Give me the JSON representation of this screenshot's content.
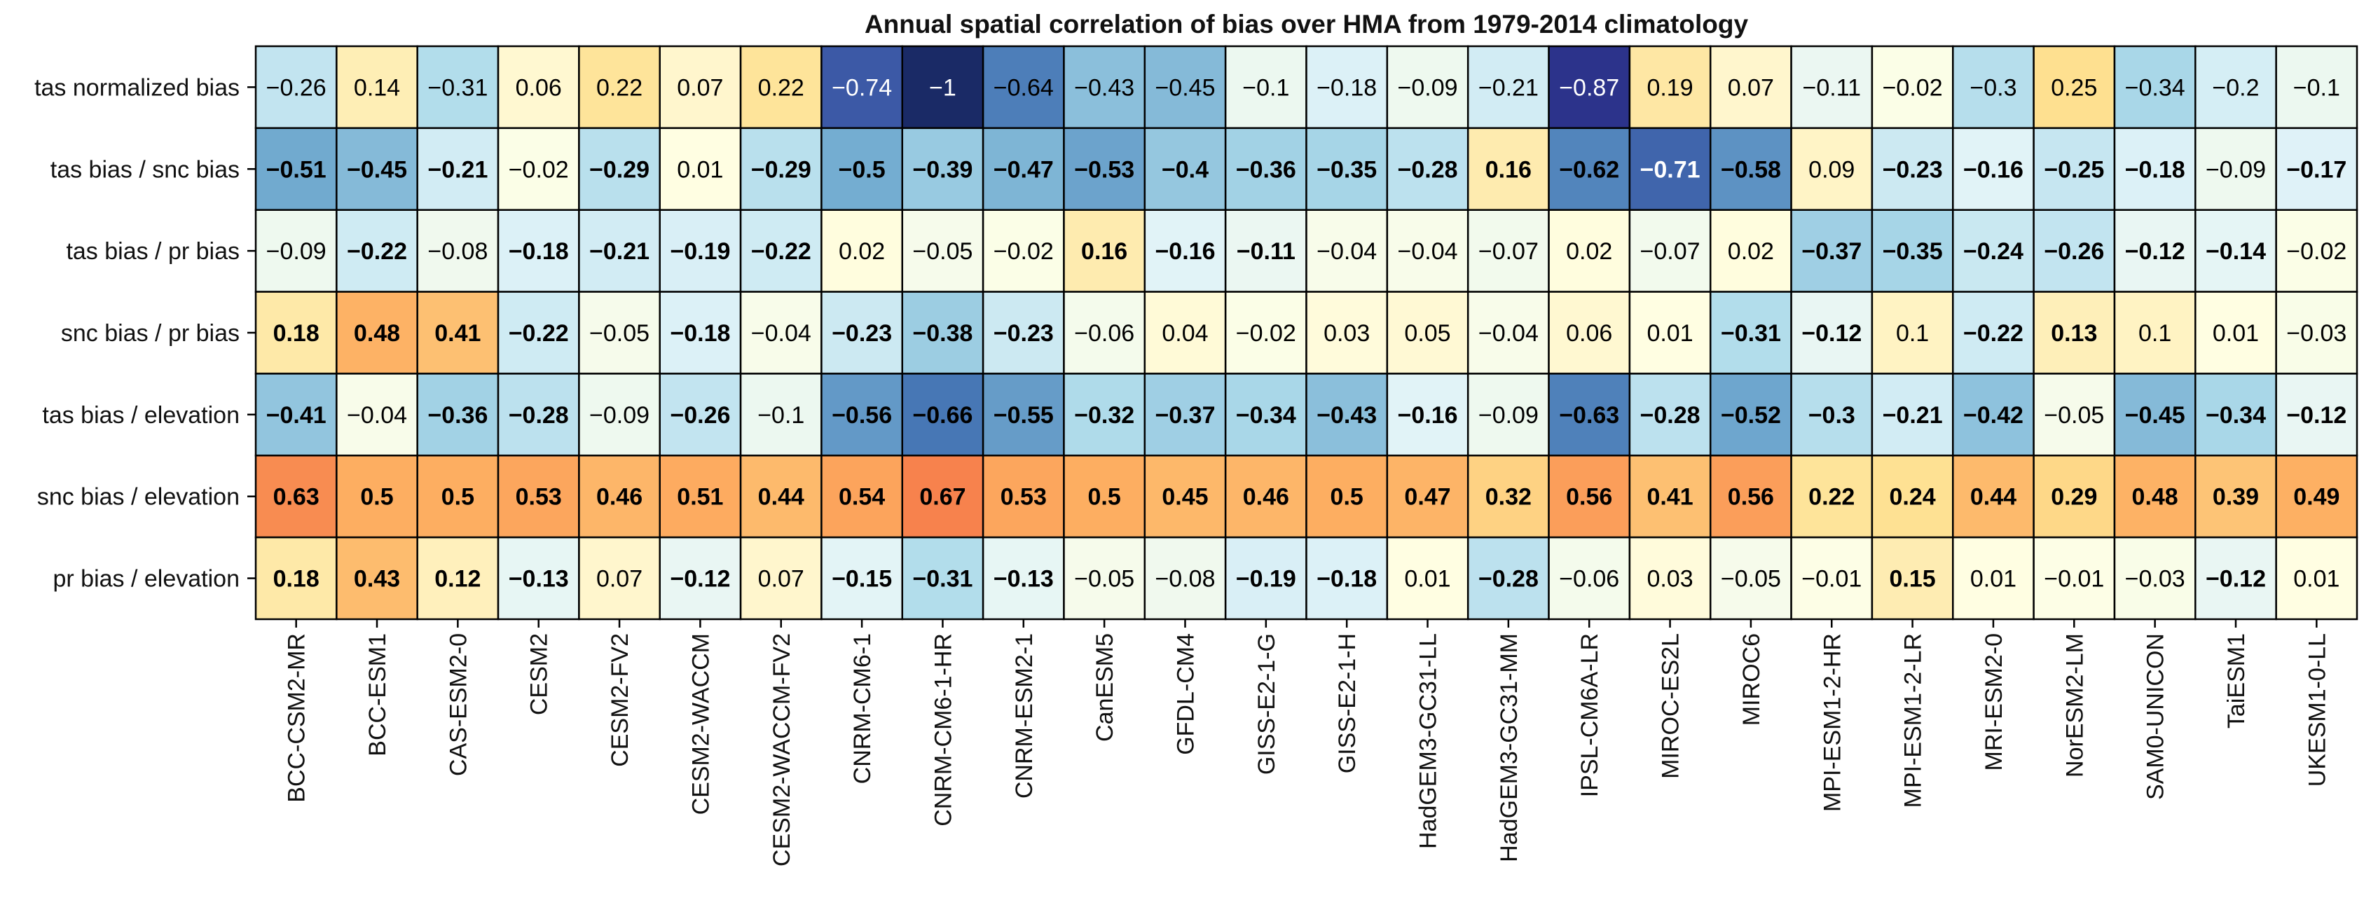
{
  "chart_data": {
    "type": "heatmap",
    "title": "Annual spatial correlation of bias over HMA from 1979-2014 climatology",
    "rows": [
      "tas normalized bias",
      "tas bias / snc bias",
      "tas bias / pr bias",
      "snc bias / pr bias",
      "tas bias / elevation",
      "snc bias / elevation",
      "pr bias / elevation"
    ],
    "columns": [
      "BCC-CSM2-MR",
      "BCC-ESM1",
      "CAS-ESM2-0",
      "CESM2",
      "CESM2-FV2",
      "CESM2-WACCM",
      "CESM2-WACCM-FV2",
      "CNRM-CM6-1",
      "CNRM-CM6-1-HR",
      "CNRM-ESM2-1",
      "CanESM5",
      "GFDL-CM4",
      "GISS-E2-1-G",
      "GISS-E2-1-H",
      "HadGEM3-GC31-LL",
      "HadGEM3-GC31-MM",
      "IPSL-CM6A-LR",
      "MIROC-ES2L",
      "MIROC6",
      "MPI-ESM1-2-HR",
      "MPI-ESM1-2-LR",
      "MRI-ESM2-0",
      "NorESM2-LM",
      "SAM0-UNICON",
      "TaiESM1",
      "UKESM1-0-LL"
    ],
    "values": [
      [
        -0.26,
        0.14,
        -0.31,
        0.06,
        0.22,
        0.07,
        0.22,
        -0.74,
        -1,
        -0.64,
        -0.43,
        -0.45,
        -0.1,
        -0.18,
        -0.09,
        -0.21,
        -0.87,
        0.19,
        0.07,
        -0.11,
        -0.02,
        -0.3,
        0.25,
        -0.34,
        -0.2,
        -0.1
      ],
      [
        -0.51,
        -0.45,
        -0.21,
        -0.02,
        -0.29,
        0.01,
        -0.29,
        -0.5,
        -0.39,
        -0.47,
        -0.53,
        -0.4,
        -0.36,
        -0.35,
        -0.28,
        0.16,
        -0.62,
        -0.71,
        -0.58,
        0.09,
        -0.23,
        -0.16,
        -0.25,
        -0.18,
        -0.09,
        -0.17
      ],
      [
        -0.09,
        -0.22,
        -0.08,
        -0.18,
        -0.21,
        -0.19,
        -0.22,
        0.02,
        -0.05,
        -0.02,
        0.16,
        -0.16,
        -0.11,
        -0.04,
        -0.04,
        -0.07,
        0.02,
        -0.07,
        0.02,
        -0.37,
        -0.35,
        -0.24,
        -0.26,
        -0.12,
        -0.14,
        -0.02
      ],
      [
        0.18,
        0.48,
        0.41,
        -0.22,
        -0.05,
        -0.18,
        -0.04,
        -0.23,
        -0.38,
        -0.23,
        -0.06,
        0.04,
        -0.02,
        0.03,
        0.05,
        -0.04,
        0.06,
        0.01,
        -0.31,
        -0.12,
        0.1,
        -0.22,
        0.13,
        0.1,
        0.01,
        -0.03
      ],
      [
        -0.41,
        -0.04,
        -0.36,
        -0.28,
        -0.09,
        -0.26,
        -0.1,
        -0.56,
        -0.66,
        -0.55,
        -0.32,
        -0.37,
        -0.34,
        -0.43,
        -0.16,
        -0.09,
        -0.63,
        -0.28,
        -0.52,
        -0.3,
        -0.21,
        -0.42,
        -0.05,
        -0.45,
        -0.34,
        -0.12
      ],
      [
        0.63,
        0.5,
        0.5,
        0.53,
        0.46,
        0.51,
        0.44,
        0.54,
        0.67,
        0.53,
        0.5,
        0.45,
        0.46,
        0.5,
        0.47,
        0.32,
        0.56,
        0.41,
        0.56,
        0.22,
        0.24,
        0.44,
        0.29,
        0.48,
        0.39,
        0.49
      ],
      [
        0.18,
        0.43,
        0.12,
        -0.13,
        0.07,
        -0.12,
        0.07,
        -0.15,
        -0.31,
        -0.13,
        -0.05,
        -0.08,
        -0.19,
        -0.18,
        0.01,
        -0.28,
        -0.06,
        0.03,
        -0.05,
        -0.01,
        0.15,
        0.01,
        -0.01,
        -0.03,
        -0.12,
        0.01
      ]
    ],
    "bold": [
      [
        false,
        false,
        false,
        false,
        false,
        false,
        false,
        false,
        false,
        false,
        false,
        false,
        false,
        false,
        false,
        false,
        false,
        false,
        false,
        false,
        false,
        false,
        false,
        false,
        false,
        false
      ],
      [
        true,
        true,
        true,
        false,
        true,
        false,
        true,
        true,
        true,
        true,
        true,
        true,
        true,
        true,
        true,
        true,
        true,
        true,
        true,
        false,
        true,
        true,
        true,
        true,
        false,
        true
      ],
      [
        false,
        true,
        false,
        true,
        true,
        true,
        true,
        false,
        false,
        false,
        true,
        true,
        true,
        false,
        false,
        false,
        false,
        false,
        false,
        true,
        true,
        true,
        true,
        true,
        true,
        false
      ],
      [
        true,
        true,
        true,
        true,
        false,
        true,
        false,
        true,
        true,
        true,
        false,
        false,
        false,
        false,
        false,
        false,
        false,
        false,
        true,
        true,
        false,
        true,
        true,
        false,
        false,
        false
      ],
      [
        true,
        false,
        true,
        true,
        false,
        true,
        false,
        true,
        true,
        true,
        true,
        true,
        true,
        true,
        true,
        false,
        true,
        true,
        true,
        true,
        true,
        true,
        false,
        true,
        true,
        true
      ],
      [
        true,
        true,
        true,
        true,
        true,
        true,
        true,
        true,
        true,
        true,
        true,
        true,
        true,
        true,
        true,
        true,
        true,
        true,
        true,
        true,
        true,
        true,
        true,
        true,
        true,
        true
      ],
      [
        true,
        true,
        true,
        true,
        false,
        true,
        false,
        true,
        true,
        true,
        false,
        false,
        true,
        true,
        false,
        true,
        false,
        false,
        false,
        false,
        true,
        false,
        false,
        false,
        true,
        false
      ]
    ],
    "colormap": "RdYlBu_r",
    "value_range": [
      -1,
      1
    ],
    "grid": true,
    "colors": {
      "negative_scale": [
        "#ffffe5",
        "#e0f3f8",
        "#abd9e9",
        "#74add1",
        "#4575b4",
        "#313695",
        "#1a2a66"
      ],
      "positive_scale": [
        "#ffffe5",
        "#fee090",
        "#fdae61",
        "#f46d43",
        "#d73027"
      ],
      "border": "#000000",
      "text_dark": "#000000",
      "text_light": "#ffffff"
    }
  }
}
